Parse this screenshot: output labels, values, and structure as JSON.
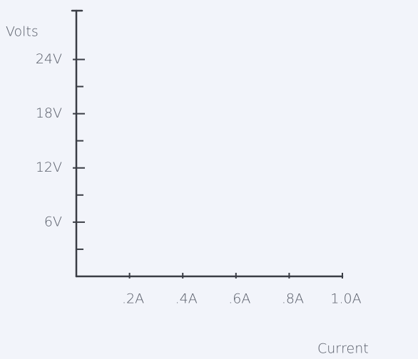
{
  "chart_data": {
    "type": "line",
    "y_label": "Volts",
    "x_label": "Current",
    "series": [],
    "ylim": [
      0,
      29
    ],
    "yticks": [
      {
        "value": 6,
        "label": "6V"
      },
      {
        "value": 12,
        "label": "12V"
      },
      {
        "value": 18,
        "label": "18V"
      },
      {
        "value": 24,
        "label": "24V"
      }
    ],
    "minor_yticks": [
      3,
      9,
      15,
      21
    ],
    "xlim": [
      0,
      1
    ],
    "xticks": [
      {
        "value": 0.2,
        "label": ".2A"
      },
      {
        "value": 0.4,
        "label": ".4A"
      },
      {
        "value": 0.6,
        "label": ".6A"
      },
      {
        "value": 0.8,
        "label": ".8A"
      },
      {
        "value": 1.0,
        "label": "1.0A"
      }
    ],
    "grid": false
  }
}
